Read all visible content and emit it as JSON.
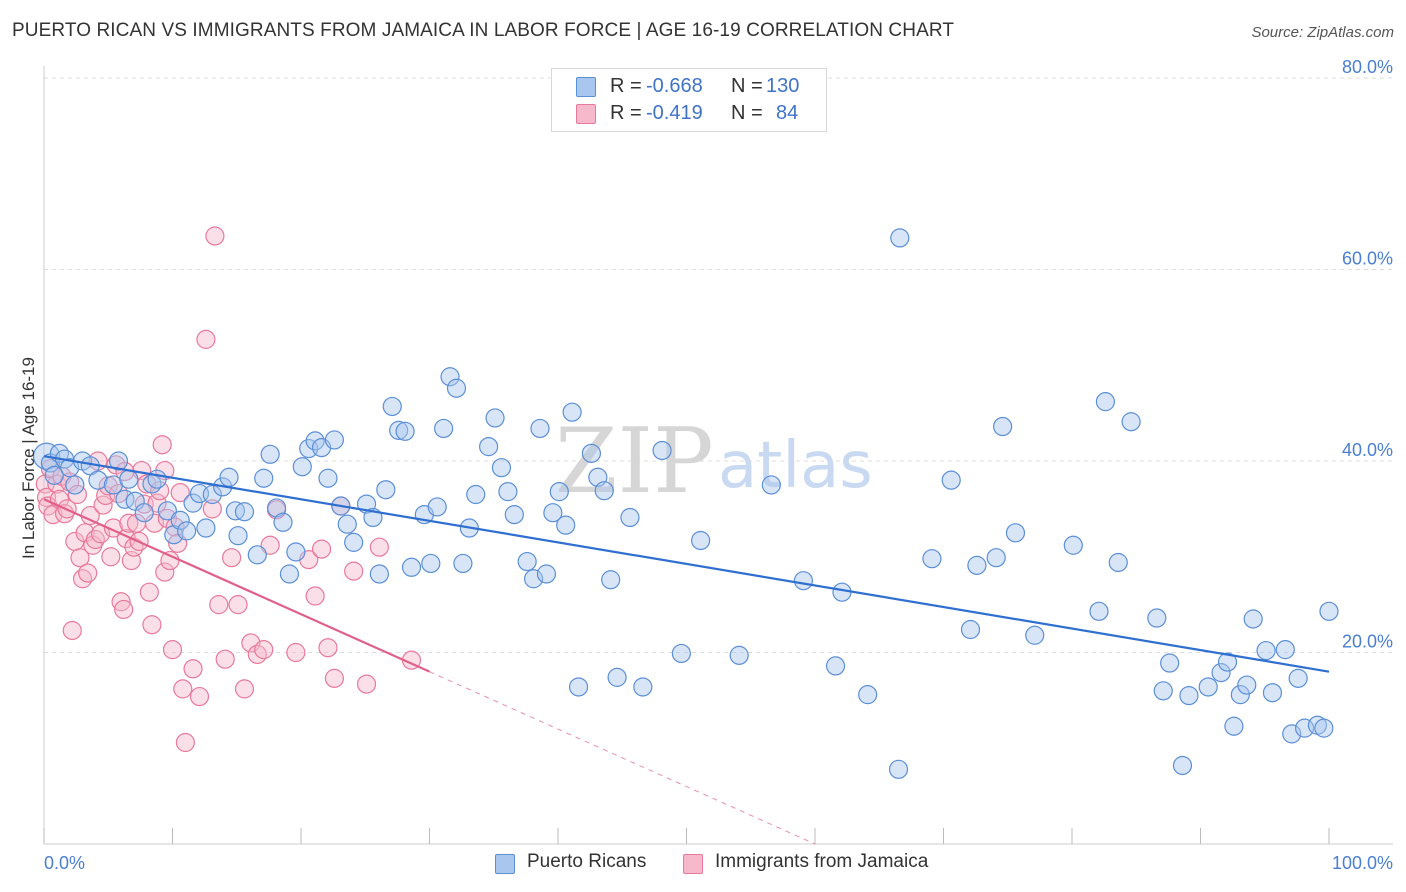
{
  "title": "PUERTO RICAN VS IMMIGRANTS FROM JAMAICA IN LABOR FORCE | AGE 16-19 CORRELATION CHART",
  "source": "Source: ZipAtlas.com",
  "watermark": {
    "zip": "ZIP",
    "atlas": "atlas"
  },
  "legend": {
    "rows": [
      {
        "r_label": "R =",
        "r_value": "-0.668",
        "n_label": "N =",
        "n_value": "130"
      },
      {
        "r_label": "R =",
        "r_value": "-0.419",
        "n_label": "N =",
        "n_value": "84"
      }
    ]
  },
  "colors": {
    "blue_fill": "#a9c6ee",
    "blue_stroke": "#5b8fd6",
    "blue_line": "#2f6fd0",
    "pink_fill": "#f5b9cb",
    "pink_stroke": "#e8799b",
    "pink_line": "#e0608a",
    "grid": "#dddddd",
    "tick_text": "#4a7fd0"
  },
  "chart_data": {
    "type": "scatter",
    "title": "PUERTO RICAN VS IMMIGRANTS FROM JAMAICA IN LABOR FORCE | AGE 16-19 CORRELATION CHART",
    "xlabel": "",
    "ylabel": "In Labor Force | Age 16-19",
    "xlim": [
      0,
      100
    ],
    "ylim": [
      0,
      80
    ],
    "x_tick_labels": [
      "0.0%",
      "100.0%"
    ],
    "y_ticks": [
      20,
      40,
      60,
      80
    ],
    "y_tick_labels": [
      "20.0%",
      "40.0%",
      "60.0%",
      "80.0%"
    ],
    "grid": true,
    "legend_position": "top-center",
    "series": [
      {
        "name": "Puerto Ricans",
        "color": "#a9c6ee",
        "trend": {
          "x0": 0,
          "y0": 40.5,
          "x1": 100,
          "y1": 18.0
        },
        "points": [
          [
            0.2,
            40.5
          ],
          [
            0.5,
            39.8
          ],
          [
            0.8,
            38.5
          ],
          [
            1.2,
            40.8
          ],
          [
            1.6,
            40.2
          ],
          [
            2.0,
            39.3
          ],
          [
            2.4,
            37.5
          ],
          [
            3.0,
            40.0
          ],
          [
            3.6,
            39.5
          ],
          [
            4.2,
            38.0
          ],
          [
            5.4,
            37.5
          ],
          [
            5.8,
            40.0
          ],
          [
            6.3,
            36.0
          ],
          [
            6.6,
            38.1
          ],
          [
            7.1,
            35.8
          ],
          [
            7.8,
            34.6
          ],
          [
            8.4,
            37.6
          ],
          [
            8.8,
            38.1
          ],
          [
            9.6,
            34.8
          ],
          [
            10.1,
            32.3
          ],
          [
            10.6,
            33.8
          ],
          [
            11.1,
            32.7
          ],
          [
            11.6,
            35.6
          ],
          [
            12.1,
            36.6
          ],
          [
            12.6,
            33.0
          ],
          [
            13.1,
            36.5
          ],
          [
            13.9,
            37.3
          ],
          [
            14.4,
            38.3
          ],
          [
            14.9,
            34.8
          ],
          [
            15.1,
            32.2
          ],
          [
            15.6,
            34.7
          ],
          [
            16.6,
            30.2
          ],
          [
            17.1,
            38.2
          ],
          [
            17.6,
            40.7
          ],
          [
            18.1,
            35.1
          ],
          [
            18.6,
            33.6
          ],
          [
            19.1,
            28.2
          ],
          [
            19.6,
            30.5
          ],
          [
            20.1,
            39.4
          ],
          [
            20.6,
            41.3
          ],
          [
            21.1,
            42.1
          ],
          [
            21.6,
            41.4
          ],
          [
            22.1,
            38.2
          ],
          [
            22.6,
            42.2
          ],
          [
            23.1,
            35.3
          ],
          [
            23.6,
            33.4
          ],
          [
            24.1,
            31.5
          ],
          [
            25.1,
            35.5
          ],
          [
            25.6,
            34.1
          ],
          [
            26.1,
            28.2
          ],
          [
            26.6,
            37.0
          ],
          [
            27.1,
            45.7
          ],
          [
            27.6,
            43.2
          ],
          [
            28.1,
            43.1
          ],
          [
            28.6,
            28.9
          ],
          [
            29.6,
            34.4
          ],
          [
            30.1,
            29.3
          ],
          [
            30.6,
            35.2
          ],
          [
            31.1,
            43.4
          ],
          [
            31.6,
            48.8
          ],
          [
            32.1,
            47.6
          ],
          [
            32.6,
            29.3
          ],
          [
            33.1,
            33.0
          ],
          [
            33.6,
            36.5
          ],
          [
            34.6,
            41.5
          ],
          [
            35.1,
            44.5
          ],
          [
            35.6,
            39.3
          ],
          [
            36.1,
            36.8
          ],
          [
            36.6,
            34.4
          ],
          [
            37.6,
            29.5
          ],
          [
            38.1,
            27.7
          ],
          [
            38.6,
            43.4
          ],
          [
            39.1,
            28.2
          ],
          [
            39.6,
            34.6
          ],
          [
            40.1,
            36.8
          ],
          [
            40.6,
            33.3
          ],
          [
            41.1,
            45.1
          ],
          [
            41.6,
            16.4
          ],
          [
            42.6,
            40.8
          ],
          [
            43.1,
            38.3
          ],
          [
            43.6,
            36.9
          ],
          [
            44.1,
            27.6
          ],
          [
            44.6,
            17.4
          ],
          [
            45.6,
            34.1
          ],
          [
            46.6,
            16.4
          ],
          [
            48.1,
            41.1
          ],
          [
            49.6,
            19.9
          ],
          [
            51.1,
            31.7
          ],
          [
            54.1,
            19.7
          ],
          [
            56.6,
            37.5
          ],
          [
            59.1,
            27.5
          ],
          [
            61.6,
            18.6
          ],
          [
            62.1,
            26.3
          ],
          [
            64.1,
            15.6
          ],
          [
            66.5,
            7.8
          ],
          [
            69.1,
            29.8
          ],
          [
            70.6,
            38.0
          ],
          [
            72.1,
            22.4
          ],
          [
            72.6,
            29.1
          ],
          [
            74.1,
            29.9
          ],
          [
            75.6,
            32.5
          ],
          [
            77.1,
            21.8
          ],
          [
            80.1,
            31.2
          ],
          [
            82.1,
            24.3
          ],
          [
            83.6,
            29.4
          ],
          [
            84.6,
            44.1
          ],
          [
            86.6,
            23.6
          ],
          [
            87.1,
            16.0
          ],
          [
            87.6,
            18.9
          ],
          [
            88.6,
            8.2
          ],
          [
            89.1,
            15.5
          ],
          [
            90.6,
            16.4
          ],
          [
            91.6,
            17.9
          ],
          [
            92.1,
            19.0
          ],
          [
            92.6,
            12.3
          ],
          [
            93.1,
            15.6
          ],
          [
            93.6,
            16.6
          ],
          [
            94.1,
            23.5
          ],
          [
            95.1,
            20.2
          ],
          [
            95.6,
            15.8
          ],
          [
            96.6,
            20.3
          ],
          [
            97.1,
            11.5
          ],
          [
            97.6,
            17.3
          ],
          [
            98.1,
            12.1
          ],
          [
            99.1,
            12.4
          ],
          [
            99.6,
            12.1
          ],
          [
            100.0,
            24.3
          ],
          [
            66.6,
            63.3
          ],
          [
            82.6,
            46.2
          ],
          [
            74.6,
            43.6
          ]
        ]
      },
      {
        "name": "Immigrants from Jamaica",
        "color": "#f5b9cb",
        "trend": {
          "x0": 0,
          "y0": 36.0,
          "x1": 30,
          "y1": 18.0,
          "dashed_to_x": 60,
          "dashed_to_y": 0
        },
        "points": [
          [
            0.1,
            37.6
          ],
          [
            0.2,
            36.2
          ],
          [
            0.3,
            35.3
          ],
          [
            0.5,
            39.2
          ],
          [
            0.7,
            34.4
          ],
          [
            1.0,
            37.6
          ],
          [
            1.2,
            36.0
          ],
          [
            1.4,
            38.4
          ],
          [
            1.6,
            34.5
          ],
          [
            1.8,
            35.0
          ],
          [
            2.0,
            37.8
          ],
          [
            2.2,
            22.3
          ],
          [
            2.4,
            31.6
          ],
          [
            2.6,
            36.5
          ],
          [
            2.8,
            29.9
          ],
          [
            3.0,
            27.7
          ],
          [
            3.2,
            32.5
          ],
          [
            3.4,
            28.3
          ],
          [
            3.6,
            34.3
          ],
          [
            3.8,
            31.2
          ],
          [
            4.0,
            31.8
          ],
          [
            4.2,
            40.0
          ],
          [
            4.4,
            32.4
          ],
          [
            4.6,
            35.4
          ],
          [
            4.8,
            36.4
          ],
          [
            5.0,
            37.4
          ],
          [
            5.2,
            30.0
          ],
          [
            5.4,
            33.0
          ],
          [
            5.6,
            39.6
          ],
          [
            5.8,
            36.6
          ],
          [
            6.0,
            25.3
          ],
          [
            6.2,
            24.5
          ],
          [
            6.4,
            31.9
          ],
          [
            6.6,
            33.5
          ],
          [
            6.8,
            29.6
          ],
          [
            7.0,
            31.0
          ],
          [
            7.2,
            33.5
          ],
          [
            7.4,
            31.6
          ],
          [
            7.6,
            39.0
          ],
          [
            7.8,
            35.5
          ],
          [
            8.0,
            37.6
          ],
          [
            8.2,
            26.3
          ],
          [
            8.4,
            22.9
          ],
          [
            8.6,
            33.5
          ],
          [
            8.8,
            35.6
          ],
          [
            9.0,
            36.9
          ],
          [
            9.2,
            41.7
          ],
          [
            9.4,
            28.4
          ],
          [
            9.6,
            34.0
          ],
          [
            9.8,
            29.6
          ],
          [
            10.0,
            20.3
          ],
          [
            10.2,
            33.1
          ],
          [
            10.4,
            31.4
          ],
          [
            10.6,
            36.7
          ],
          [
            10.8,
            16.2
          ],
          [
            11.0,
            10.6
          ],
          [
            11.6,
            18.3
          ],
          [
            12.1,
            15.4
          ],
          [
            12.6,
            52.7
          ],
          [
            13.1,
            35.0
          ],
          [
            13.6,
            25.0
          ],
          [
            14.1,
            19.3
          ],
          [
            14.6,
            29.9
          ],
          [
            15.1,
            25.0
          ],
          [
            15.6,
            16.2
          ],
          [
            16.1,
            21.0
          ],
          [
            16.6,
            19.8
          ],
          [
            17.1,
            20.3
          ],
          [
            17.6,
            31.2
          ],
          [
            18.1,
            34.9
          ],
          [
            19.6,
            20.0
          ],
          [
            20.6,
            29.7
          ],
          [
            21.1,
            25.9
          ],
          [
            21.6,
            30.8
          ],
          [
            22.1,
            20.5
          ],
          [
            22.6,
            17.3
          ],
          [
            23.1,
            35.3
          ],
          [
            24.1,
            28.5
          ],
          [
            25.1,
            16.7
          ],
          [
            26.1,
            31.0
          ],
          [
            28.6,
            19.2
          ],
          [
            13.3,
            63.5
          ],
          [
            9.4,
            39.0
          ],
          [
            6.3,
            38.9
          ]
        ]
      }
    ]
  },
  "bottom_legend": [
    {
      "label": "Puerto Ricans"
    },
    {
      "label": "Immigrants from Jamaica"
    }
  ]
}
